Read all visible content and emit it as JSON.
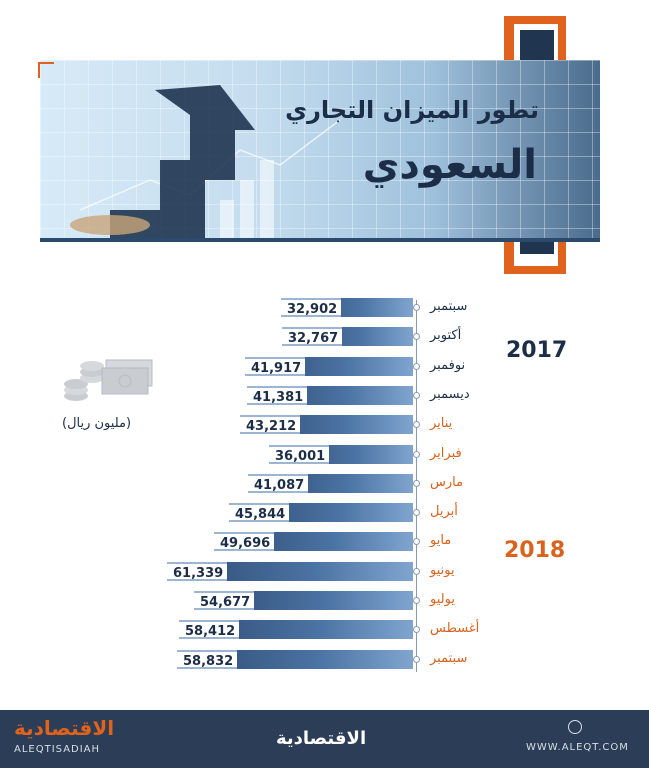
{
  "header": {
    "title_line1": "تطور الميزان التجاري",
    "title_line2": "السعودي"
  },
  "legend": {
    "unit": "(مليون ريال)",
    "coins_icon": "coins-and-banknotes-icon"
  },
  "years": [
    "2017",
    "2018"
  ],
  "colors": {
    "accent": "#e0621c",
    "navy": "#1c2e47",
    "bar_dark": "#2e4a72",
    "bar_light": "#7fa5cf"
  },
  "chart_data": {
    "type": "bar",
    "orientation": "horizontal",
    "categories": [
      "سبتمبر",
      "أكتوبر",
      "نوفمبر",
      "ديسمبر",
      "يناير",
      "فبراير",
      "مارس",
      "أبريل",
      "مايو",
      "يونيو",
      "يوليو",
      "أغسطس",
      "سبتمبر"
    ],
    "category_years": [
      "2017",
      "2017",
      "2017",
      "2017",
      "2018",
      "2018",
      "2018",
      "2018",
      "2018",
      "2018",
      "2018",
      "2018",
      "2018"
    ],
    "values": [
      32902,
      32767,
      41917,
      41381,
      43212,
      36001,
      41087,
      45844,
      49696,
      61339,
      54677,
      58412,
      58832
    ],
    "value_labels": [
      "32,902",
      "32,767",
      "41,917",
      "41,381",
      "43,212",
      "36,001",
      "41,087",
      "45,844",
      "49,696",
      "61,339",
      "54,677",
      "58,412",
      "58,832"
    ],
    "title": "تطور الميزان التجاري السعودي",
    "unit": "(مليون ريال)",
    "xlim": [
      0,
      61339
    ]
  },
  "footer": {
    "brand_ar": "الاقتصادية",
    "brand_en": "ALEQTISADIAH",
    "brand_center": "الاقتصادية",
    "site": "WWW.ALEQT.COM"
  }
}
